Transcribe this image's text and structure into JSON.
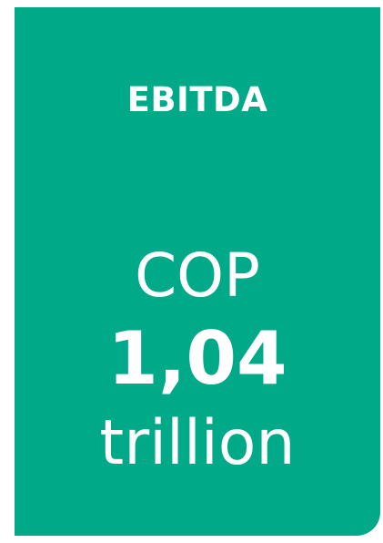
{
  "card": {
    "label": "EBITDA",
    "currency": "COP",
    "value": "1,04",
    "unit": "trillion",
    "background_color": "#00a987",
    "text_color": "#ffffff"
  }
}
